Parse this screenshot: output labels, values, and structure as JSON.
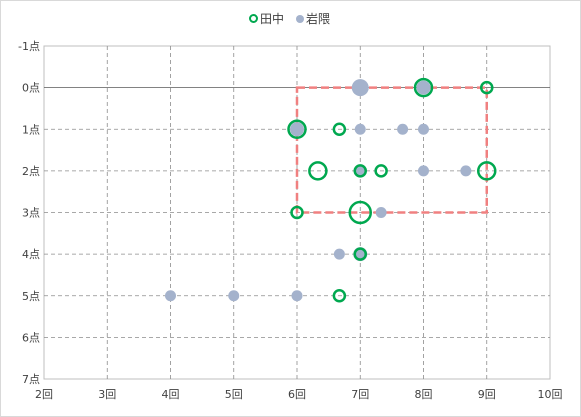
{
  "chart_data": {
    "type": "bubble",
    "title": "",
    "xlabel": "",
    "ylabel": "",
    "xlim": [
      2,
      10
    ],
    "ylim": [
      -1,
      7
    ],
    "y_inverted": true,
    "grid": true,
    "legend_position": "top",
    "x_ticks": [
      "2回",
      "3回",
      "4回",
      "5回",
      "6回",
      "7回",
      "8回",
      "9回",
      "10回"
    ],
    "y_ticks": [
      "-1点",
      "0点",
      "1点",
      "2点",
      "3点",
      "4点",
      "5点",
      "6点",
      "7点"
    ],
    "series": [
      {
        "name": "田中",
        "marker": "hollow-circle",
        "color": "#00a84f",
        "points": [
          {
            "x": 8,
            "y": 0,
            "size": 3
          },
          {
            "x": 9,
            "y": 0,
            "size": 1
          },
          {
            "x": 6,
            "y": 1,
            "size": 3
          },
          {
            "x": 6.67,
            "y": 1,
            "size": 1
          },
          {
            "x": 6.33,
            "y": 2,
            "size": 2
          },
          {
            "x": 7,
            "y": 2,
            "size": 1
          },
          {
            "x": 7.33,
            "y": 2,
            "size": 1
          },
          {
            "x": 9,
            "y": 2,
            "size": 2
          },
          {
            "x": 6,
            "y": 3,
            "size": 1
          },
          {
            "x": 7,
            "y": 3,
            "size": 4
          },
          {
            "x": 7,
            "y": 4,
            "size": 1
          },
          {
            "x": 6.67,
            "y": 5,
            "size": 1
          }
        ]
      },
      {
        "name": "岩隈",
        "marker": "filled-circle",
        "color": "#a4b2cc",
        "points": [
          {
            "x": 7,
            "y": 0,
            "size": 3
          },
          {
            "x": 8,
            "y": 0,
            "size": 2
          },
          {
            "x": 6,
            "y": 1,
            "size": 2
          },
          {
            "x": 7,
            "y": 1,
            "size": 1
          },
          {
            "x": 7.67,
            "y": 1,
            "size": 1
          },
          {
            "x": 8,
            "y": 1,
            "size": 1
          },
          {
            "x": 7,
            "y": 2,
            "size": 1
          },
          {
            "x": 8,
            "y": 2,
            "size": 1
          },
          {
            "x": 8.67,
            "y": 2,
            "size": 1
          },
          {
            "x": 7.33,
            "y": 3,
            "size": 1
          },
          {
            "x": 6.67,
            "y": 4,
            "size": 1
          },
          {
            "x": 7,
            "y": 4,
            "size": 2
          },
          {
            "x": 4,
            "y": 5,
            "size": 1
          },
          {
            "x": 5,
            "y": 5,
            "size": 1
          },
          {
            "x": 6,
            "y": 5,
            "size": 1
          }
        ]
      }
    ],
    "annotations": [
      {
        "type": "dashed-rectangle",
        "color": "#f08080",
        "x_range": [
          6,
          9
        ],
        "y_range": [
          0,
          3
        ]
      }
    ]
  }
}
